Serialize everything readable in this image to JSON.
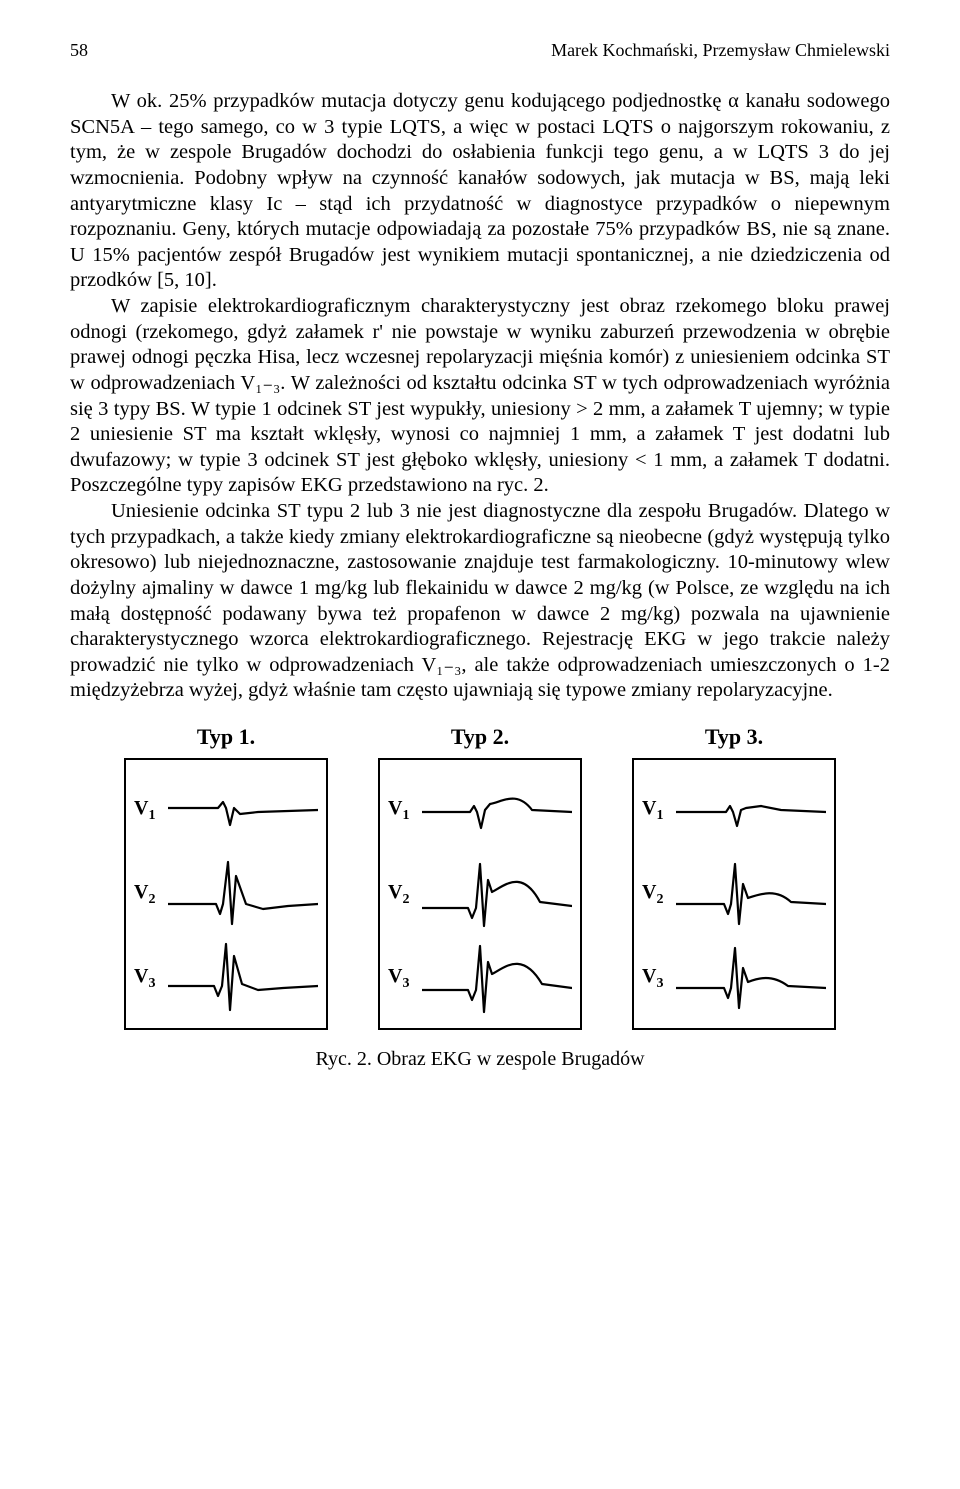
{
  "header": {
    "page_number": "58",
    "authors": "Marek Kochmański, Przemysław Chmielewski"
  },
  "paragraphs": {
    "p1": "W ok. 25% przypadków mutacja dotyczy genu kodującego podjednostkę α kanału sodowego SCN5A – tego samego, co w 3 typie LQTS, a więc w postaci LQTS o najgorszym rokowaniu, z tym, że w zespole Brugadów dochodzi do osłabienia funkcji tego genu, a w LQTS 3 do jej wzmocnienia. Podobny wpływ na czynność kanałów sodowych, jak mutacja w BS, mają leki antyarytmiczne klasy Ic – stąd ich przydatność w diagnostyce przypadków o niepewnym rozpoznaniu. Geny, których mutacje odpowiadają za pozostałe 75% przypadków BS, nie są znane. U 15% pacjentów zespół Brugadów jest wynikiem mutacji spontanicznej, a nie dziedziczenia od przodków [5, 10].",
    "p2": "W zapisie elektrokardiograficznym charakterystyczny jest obraz rzekomego bloku prawej odnogi (rzekomego, gdyż załamek r' nie powstaje w wyniku zaburzeń przewodzenia w obrębie prawej odnogi pęczka Hisa, lecz wczesnej repolaryzacji mięśnia komór) z uniesieniem odcinka ST w odprowadzeniach V₁₋₃. W zależności od kształtu odcinka ST w tych odprowadzeniach wyróżnia się 3 typy BS. W typie 1 odcinek ST jest wypukły, uniesiony > 2 mm, a załamek T ujemny; w typie 2 uniesienie ST ma kształt wklęsły, wynosi co najmniej 1 mm, a załamek T jest dodatni lub dwufazowy; w typie 3 odcinek ST jest głęboko wklęsły, uniesiony < 1 mm, a załamek T dodatni. Poszczególne typy zapisów EKG przedstawiono na ryc. 2.",
    "p3": "Uniesienie odcinka ST typu 2 lub 3 nie jest diagnostyczne dla zespołu Brugadów. Dlatego w tych przypadkach, a także kiedy zmiany elektrokardiograficzne są nieobecne (gdyż występują tylko okresowo) lub niejednoznaczne, zastosowanie znajduje test farmakologiczny. 10-minutowy wlew dożylny ajmaliny w dawce 1 mg/kg lub flekainidu w dawce 2 mg/kg (w Polsce, ze względu na ich małą dostępność podawany bywa też propafenon w dawce 2 mg/kg) pozwala na ujawnienie charakterystycznego wzorca elektrokardiograficznego. Rejestrację EKG w jego trakcie należy prowadzić nie tylko w odprowadzeniach V₁₋₃, ale także odprowadzeniach umieszczonych o 1-2 międzyżebrza wyżej, gdyż właśnie tam często ujawniają się typowe zmiany repolaryzacyjne."
  },
  "figure": {
    "caption": "Ryc. 2. Obraz EKG w zespole Brugadów",
    "panel_titles": [
      "Typ 1.",
      "Typ 2.",
      "Typ 3."
    ],
    "lead_labels": [
      "V₁",
      "V₂",
      "V₃"
    ],
    "trace_w": 150,
    "trace_h": 80,
    "stroke": "#000000",
    "stroke_width": 2.2,
    "panels": [
      {
        "traces": [
          "M0,38 L50,38 L55,32 L58,38 L62,55 L66,38 L72,44 L90,42 L150,40",
          "M0,50 L48,50 L52,60 L55,50 L60,8 L64,70 L68,22 L78,50 L95,55 L120,52 L150,50",
          "M0,48 L46,48 L50,58 L54,48 L58,6 L62,72 L66,18 L74,46 L90,52 L115,50 L150,48"
        ]
      },
      {
        "traces": [
          "M0,42 L48,42 L52,36 L55,42 L59,58 L63,40 L68,34 C80,32 95,20 110,40 L150,42",
          "M0,54 L46,54 L50,64 L54,54 L58,10 L62,72 L66,26 L70,38 C82,32 100,14 118,48 L150,52",
          "M0,52 L46,52 L50,62 L54,52 L58,8 L62,74 L66,24 L70,36 C82,30 100,12 120,46 L150,50"
        ]
      },
      {
        "traces": [
          "M0,42 L50,42 L54,36 L57,42 L61,56 L65,40 L70,38 L85,36 L105,40 L150,42",
          "M0,50 L48,50 L52,60 L55,50 L59,10 L63,70 L67,30 L72,44 C84,40 100,34 115,48 L150,50",
          "M0,50 L48,50 L52,60 L55,50 L59,10 L63,70 L67,30 L72,44 C82,40 96,36 112,48 L150,50"
        ]
      }
    ]
  }
}
